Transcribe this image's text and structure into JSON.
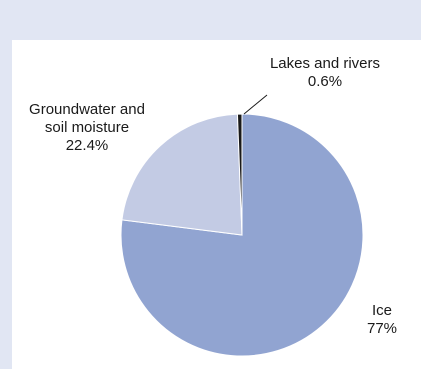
{
  "chart_data": {
    "type": "pie",
    "slices": [
      {
        "label": "Ice",
        "value": 77,
        "value_label": "77%",
        "color": "#91a4d1"
      },
      {
        "label": "Groundwater and soil moisture",
        "label_lines": [
          "Groundwater and",
          "soil moisture"
        ],
        "value": 22.4,
        "value_label": "22.4%",
        "color": "#c3cbe4"
      },
      {
        "label": "Lakes and rivers",
        "value": 0.6,
        "value_label": "0.6%",
        "color": "#1a1a1a"
      }
    ],
    "start_angle_deg": 0,
    "direction": "clockwise",
    "title": "",
    "legend": "none"
  }
}
